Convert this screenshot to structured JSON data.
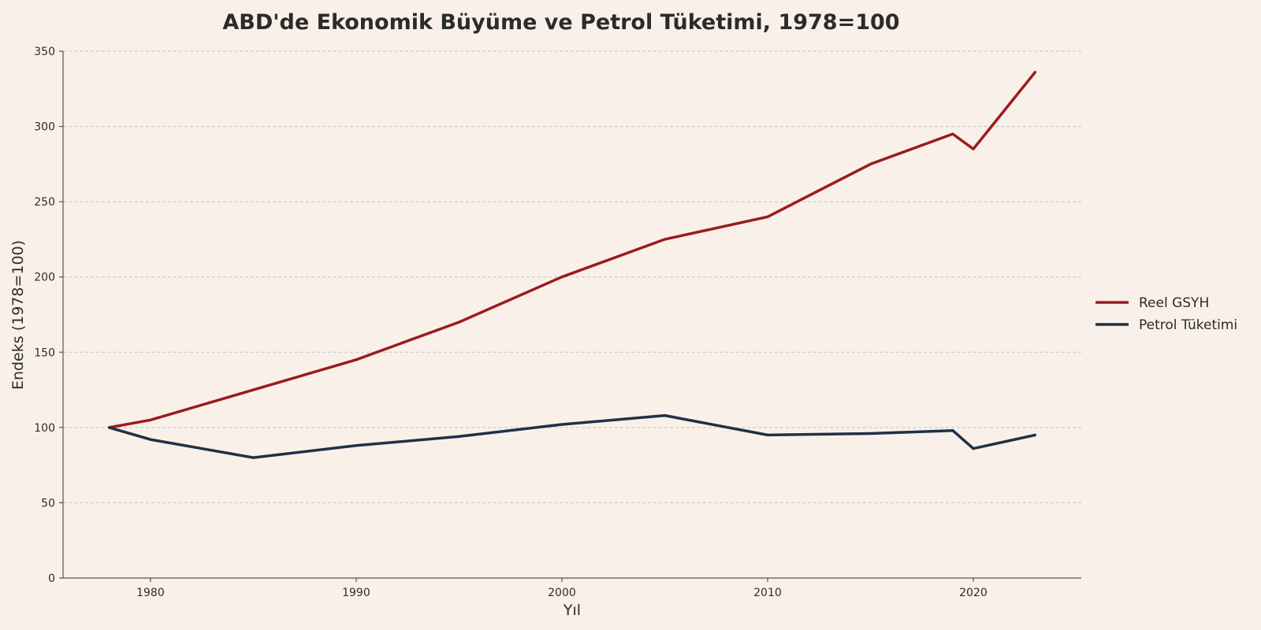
{
  "chart_data": {
    "type": "line",
    "title": "ABD'de Ekonomik Büyüme ve Petrol Tüketimi, 1978=100",
    "xlabel": "Yıl",
    "ylabel": "Endeks (1978=100)",
    "xlim": [
      1975.75,
      2025.25
    ],
    "ylim": [
      0,
      350
    ],
    "xticks": [
      1980,
      1990,
      2000,
      2010,
      2020
    ],
    "yticks": [
      0,
      50,
      100,
      150,
      200,
      250,
      300,
      350
    ],
    "grid": "horizontal dashed",
    "legend_position": "right",
    "series": [
      {
        "name": "Reel GSYH",
        "color": "#9b1b1e",
        "x": [
          1978,
          1980,
          1985,
          1990,
          1995,
          2000,
          2005,
          2010,
          2015,
          2019,
          2020,
          2023
        ],
        "y": [
          100,
          105,
          125,
          145,
          170,
          200,
          225,
          240,
          275,
          295,
          285,
          336
        ]
      },
      {
        "name": "Petrol Tüketimi",
        "color": "#1f3148",
        "x": [
          1978,
          1980,
          1985,
          1990,
          1995,
          2000,
          2005,
          2010,
          2015,
          2019,
          2020,
          2023
        ],
        "y": [
          100,
          92,
          80,
          88,
          94,
          102,
          108,
          95,
          96,
          98,
          86,
          95
        ]
      }
    ]
  }
}
